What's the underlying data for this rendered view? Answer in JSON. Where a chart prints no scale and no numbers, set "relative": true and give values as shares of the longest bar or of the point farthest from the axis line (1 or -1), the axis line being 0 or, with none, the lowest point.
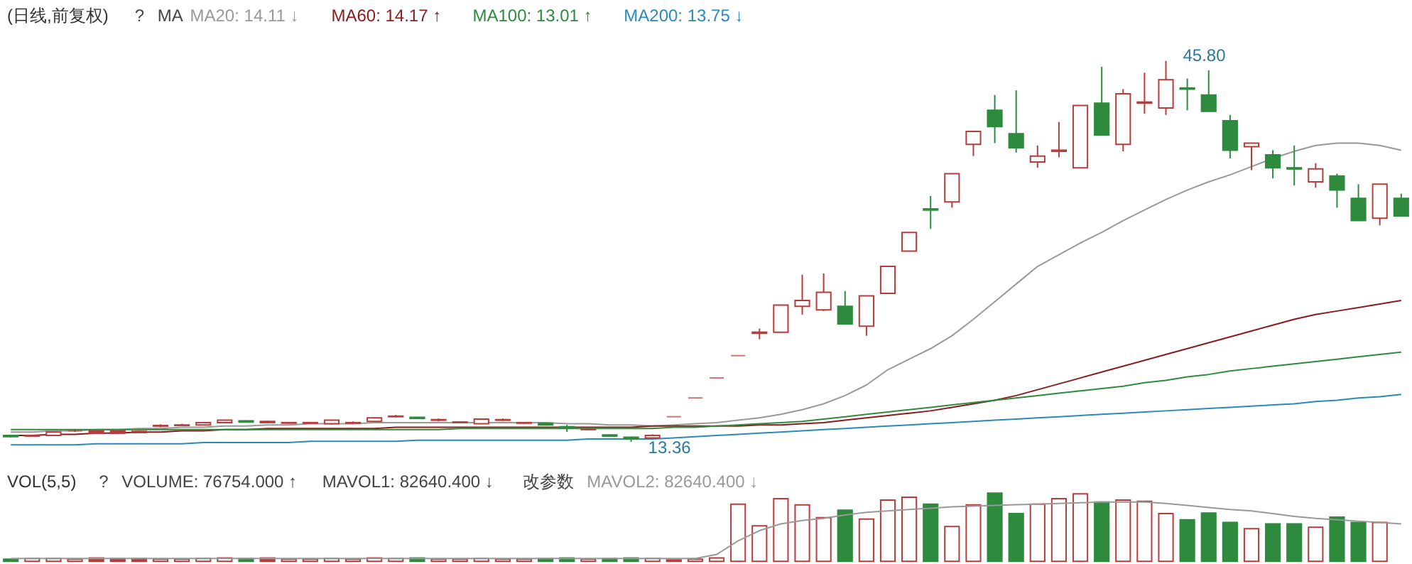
{
  "chart_data": [
    {
      "type": "candlestick",
      "title": "(日线,前复权)",
      "annotations": [
        "?",
        "MA",
        "45.80",
        "13.36"
      ],
      "legend": "top left",
      "tick_labels": false,
      "categories": [
        null,
        null,
        null,
        null,
        null,
        null,
        null,
        null,
        null,
        null,
        null,
        null,
        null,
        null,
        null,
        null,
        null,
        null,
        null,
        null,
        null,
        null,
        null,
        null,
        null,
        null,
        null,
        null,
        null,
        null,
        null,
        null,
        null,
        null,
        null,
        null,
        null,
        null,
        null,
        null,
        null,
        null,
        null,
        null,
        null,
        null,
        null,
        null,
        null,
        null,
        null,
        null,
        null,
        null,
        null,
        null,
        null,
        null,
        null,
        null,
        null,
        null,
        null,
        null,
        null,
        null
      ],
      "ohlc": [
        [
          13.9,
          13.95,
          13.75,
          13.8
        ],
        [
          13.85,
          13.95,
          13.8,
          13.9
        ],
        [
          13.9,
          14.25,
          13.85,
          14.2
        ],
        [
          14.3,
          14.4,
          14.2,
          14.3
        ],
        [
          14.3,
          14.3,
          14.05,
          14.1
        ],
        [
          14.3,
          14.35,
          14.05,
          14.1
        ],
        [
          14.25,
          14.3,
          14.1,
          14.15
        ],
        [
          14.7,
          14.85,
          14.6,
          14.75
        ],
        [
          14.75,
          14.9,
          14.7,
          14.8
        ],
        [
          14.8,
          15.05,
          14.75,
          15.0
        ],
        [
          15.0,
          15.25,
          14.95,
          15.2
        ],
        [
          15.15,
          15.2,
          15.0,
          15.05
        ],
        [
          15.1,
          15.15,
          14.95,
          15.0
        ],
        [
          14.95,
          15.05,
          14.9,
          15.0
        ],
        [
          14.95,
          15.05,
          14.9,
          15.0
        ],
        [
          14.9,
          15.25,
          14.85,
          15.2
        ],
        [
          14.95,
          15.1,
          14.9,
          15.0
        ],
        [
          15.1,
          15.45,
          15.05,
          15.4
        ],
        [
          15.5,
          15.65,
          15.45,
          15.55
        ],
        [
          15.45,
          15.5,
          15.3,
          15.35
        ],
        [
          15.2,
          15.35,
          15.1,
          15.25
        ],
        [
          15.0,
          15.1,
          14.95,
          15.05
        ],
        [
          14.9,
          15.35,
          14.85,
          15.3
        ],
        [
          15.2,
          15.35,
          15.15,
          15.25
        ],
        [
          14.95,
          15.05,
          14.9,
          15.0
        ],
        [
          14.95,
          15.0,
          14.75,
          14.8
        ],
        [
          14.65,
          14.8,
          14.2,
          14.55
        ],
        [
          14.4,
          14.5,
          14.35,
          14.45
        ],
        [
          13.95,
          14.0,
          13.8,
          13.85
        ],
        [
          13.75,
          13.8,
          13.36,
          13.6
        ],
        [
          13.7,
          14.0,
          13.65,
          13.9
        ],
        [
          15.5,
          15.5,
          15.5,
          15.5
        ],
        [
          17.1,
          17.1,
          17.1,
          17.1
        ],
        [
          18.8,
          18.8,
          18.8,
          18.8
        ],
        [
          20.7,
          20.7,
          20.7,
          20.7
        ],
        [
          22.6,
          23.0,
          22.1,
          22.7
        ],
        [
          22.7,
          25.0,
          22.7,
          25.0
        ],
        [
          24.9,
          27.6,
          24.2,
          25.4
        ],
        [
          24.6,
          27.7,
          24.5,
          26.1
        ],
        [
          24.9,
          26.2,
          23.4,
          23.4
        ],
        [
          23.2,
          25.8,
          22.4,
          25.8
        ],
        [
          26.0,
          28.3,
          26.0,
          28.3
        ],
        [
          29.6,
          31.2,
          29.6,
          31.2
        ],
        [
          33.2,
          34.3,
          31.5,
          33.1
        ],
        [
          33.8,
          36.2,
          33.3,
          36.2
        ],
        [
          38.7,
          39.8,
          37.7,
          39.8
        ],
        [
          41.6,
          42.9,
          38.8,
          40.2
        ],
        [
          39.6,
          43.3,
          38.0,
          38.4
        ],
        [
          37.2,
          38.6,
          36.7,
          37.7
        ],
        [
          38.1,
          40.6,
          37.6,
          38.2
        ],
        [
          36.7,
          42.0,
          36.7,
          42.0
        ],
        [
          42.2,
          45.3,
          39.5,
          39.5
        ],
        [
          38.7,
          43.4,
          38.1,
          43.0
        ],
        [
          42.2,
          44.8,
          41.3,
          42.3
        ],
        [
          41.8,
          45.8,
          41.2,
          44.2
        ],
        [
          43.5,
          44.3,
          41.6,
          43.4
        ],
        [
          42.9,
          45.0,
          41.5,
          41.5
        ],
        [
          40.7,
          41.2,
          37.5,
          38.2
        ],
        [
          38.5,
          38.8,
          36.5,
          38.8
        ],
        [
          37.8,
          38.2,
          35.8,
          36.7
        ],
        [
          36.7,
          38.6,
          35.2,
          36.6
        ],
        [
          35.5,
          37.1,
          35.0,
          36.6
        ],
        [
          36.0,
          36.2,
          33.3,
          34.8
        ],
        [
          34.1,
          35.3,
          32.2,
          32.2
        ],
        [
          32.4,
          35.3,
          31.8,
          35.3
        ],
        [
          34.1,
          34.5,
          32.6,
          32.6
        ]
      ],
      "colors": [
        "#2e8b3e",
        "#b83c3c",
        "#b83c3c",
        "#b83c3c",
        "#b83c3c",
        "#b83c3c",
        "#b83c3c",
        "#b83c3c",
        "#b83c3c",
        "#b83c3c",
        "#b83c3c",
        "#2e8b3e",
        "#b83c3c",
        "#b83c3c",
        "#b83c3c",
        "#b83c3c",
        "#b83c3c",
        "#b83c3c",
        "#b83c3c",
        "#2e8b3e",
        "#b83c3c",
        "#b83c3c",
        "#b83c3c",
        "#b83c3c",
        "#b83c3c",
        "#2e8b3e",
        "#2e8b3e",
        "#b83c3c",
        "#2e8b3e",
        "#2e8b3e",
        "#b83c3c",
        "#b83c3c",
        "#b83c3c",
        "#b83c3c",
        "#b83c3c",
        "#b83c3c",
        "#b83c3c",
        "#b83c3c",
        "#b83c3c",
        "#2e8b3e",
        "#b83c3c",
        "#b83c3c",
        "#b83c3c",
        "#2e8b3e",
        "#b83c3c",
        "#b83c3c",
        "#2e8b3e",
        "#2e8b3e",
        "#b83c3c",
        "#b83c3c",
        "#b83c3c",
        "#2e8b3e",
        "#b83c3c",
        "#b83c3c",
        "#b83c3c",
        "#2e8b3e",
        "#2e8b3e",
        "#2e8b3e",
        "#b83c3c",
        "#2e8b3e",
        "#2e8b3e",
        "#b83c3c",
        "#2e8b3e",
        "#2e8b3e",
        "#b83c3c",
        "#2e8b3e"
      ],
      "series": [
        {
          "name": "MA20: 14.11 ↓",
          "type": "line",
          "color": "#999999",
          "values": [
            14.2,
            14.2,
            14.3,
            14.3,
            14.4,
            14.4,
            14.5,
            14.5,
            14.6,
            14.6,
            14.7,
            14.7,
            14.8,
            14.8,
            14.9,
            14.9,
            14.9,
            15.0,
            15.0,
            15.0,
            15.0,
            15.0,
            15.0,
            15.0,
            15.0,
            15.0,
            14.9,
            14.9,
            14.8,
            14.8,
            14.7,
            14.8,
            14.9,
            15.0,
            15.2,
            15.4,
            15.7,
            16.1,
            16.6,
            17.3,
            18.2,
            19.5,
            20.4,
            21.3,
            22.4,
            23.8,
            25.3,
            26.8,
            28.3,
            29.3,
            30.3,
            31.2,
            32.2,
            33.1,
            34.0,
            34.8,
            35.5,
            36.1,
            36.8,
            37.5,
            38.1,
            38.6,
            38.8,
            38.8,
            38.6,
            38.2
          ]
        },
        {
          "name": "MA60: 14.17 ↑",
          "type": "line",
          "color": "#8b1a1a",
          "values": [
            13.9,
            13.9,
            14.0,
            14.0,
            14.1,
            14.1,
            14.2,
            14.2,
            14.3,
            14.3,
            14.4,
            14.4,
            14.5,
            14.5,
            14.5,
            14.5,
            14.5,
            14.5,
            14.6,
            14.6,
            14.6,
            14.6,
            14.6,
            14.6,
            14.6,
            14.6,
            14.6,
            14.6,
            14.6,
            14.6,
            14.7,
            14.7,
            14.7,
            14.7,
            14.7,
            14.8,
            14.8,
            14.9,
            15.0,
            15.2,
            15.4,
            15.6,
            15.8,
            16.0,
            16.3,
            16.6,
            16.9,
            17.3,
            17.8,
            18.3,
            18.8,
            19.3,
            19.8,
            20.3,
            20.8,
            21.3,
            21.8,
            22.3,
            22.8,
            23.3,
            23.8,
            24.2,
            24.5,
            24.8,
            25.1,
            25.4
          ]
        },
        {
          "name": "MA100: 13.01 ↑",
          "type": "line",
          "color": "#2e8b3e",
          "values": [
            14.4,
            14.4,
            14.4,
            14.4,
            14.4,
            14.4,
            14.4,
            14.4,
            14.4,
            14.4,
            14.4,
            14.4,
            14.4,
            14.4,
            14.4,
            14.4,
            14.4,
            14.4,
            14.4,
            14.4,
            14.4,
            14.5,
            14.5,
            14.5,
            14.5,
            14.5,
            14.5,
            14.5,
            14.5,
            14.5,
            14.5,
            14.6,
            14.6,
            14.7,
            14.8,
            14.9,
            15.0,
            15.1,
            15.3,
            15.5,
            15.7,
            15.9,
            16.1,
            16.3,
            16.5,
            16.7,
            16.9,
            17.1,
            17.3,
            17.5,
            17.7,
            17.9,
            18.1,
            18.4,
            18.6,
            18.9,
            19.1,
            19.4,
            19.6,
            19.8,
            20.0,
            20.2,
            20.4,
            20.6,
            20.8,
            21.0
          ]
        },
        {
          "name": "MA200: 13.75 ↓",
          "type": "line",
          "color": "#2a8ab8",
          "values": [
            13.1,
            13.1,
            13.1,
            13.1,
            13.2,
            13.2,
            13.2,
            13.2,
            13.2,
            13.3,
            13.3,
            13.3,
            13.3,
            13.3,
            13.4,
            13.4,
            13.4,
            13.4,
            13.4,
            13.5,
            13.5,
            13.5,
            13.5,
            13.5,
            13.5,
            13.5,
            13.5,
            13.6,
            13.6,
            13.6,
            13.6,
            13.7,
            13.8,
            13.9,
            14.0,
            14.1,
            14.2,
            14.3,
            14.4,
            14.5,
            14.6,
            14.7,
            14.8,
            14.9,
            15.0,
            15.1,
            15.2,
            15.3,
            15.4,
            15.5,
            15.6,
            15.7,
            15.8,
            15.9,
            16.0,
            16.1,
            16.2,
            16.3,
            16.4,
            16.5,
            16.6,
            16.8,
            16.9,
            17.1,
            17.2,
            17.4
          ]
        }
      ]
    },
    {
      "type": "bar",
      "title": "VOL(5,5)",
      "annotations": [
        "?",
        "VOLUME: 76754.000 ↑",
        "MAVOL1: 82640.400 ↓",
        "改参数"
      ],
      "relative": true,
      "legend": "top left",
      "tick_labels": false,
      "categories": [
        null,
        null,
        null,
        null,
        null,
        null,
        null,
        null,
        null,
        null,
        null,
        null,
        null,
        null,
        null,
        null,
        null,
        null,
        null,
        null,
        null,
        null,
        null,
        null,
        null,
        null,
        null,
        null,
        null,
        null,
        null,
        null,
        null,
        null,
        null,
        null,
        null,
        null,
        null,
        null,
        null,
        null,
        null,
        null,
        null,
        null,
        null,
        null,
        null,
        null,
        null,
        null,
        null,
        null,
        null,
        null,
        null,
        null,
        null,
        null,
        null,
        null,
        null,
        null,
        null,
        null
      ],
      "series": [
        {
          "type": "bar",
          "colors": [
            "#2e8b3e",
            "#b83c3c",
            "#b83c3c",
            "#b83c3c",
            "#b83c3c",
            "#b83c3c",
            "#b83c3c",
            "#b83c3c",
            "#b83c3c",
            "#b83c3c",
            "#b83c3c",
            "#2e8b3e",
            "#b83c3c",
            "#b83c3c",
            "#b83c3c",
            "#b83c3c",
            "#b83c3c",
            "#b83c3c",
            "#b83c3c",
            "#2e8b3e",
            "#b83c3c",
            "#b83c3c",
            "#b83c3c",
            "#b83c3c",
            "#b83c3c",
            "#2e8b3e",
            "#2e8b3e",
            "#b83c3c",
            "#2e8b3e",
            "#2e8b3e",
            "#b83c3c",
            "#b83c3c",
            "#b83c3c",
            "#b83c3c",
            "#b83c3c",
            "#b83c3c",
            "#b83c3c",
            "#b83c3c",
            "#b83c3c",
            "#2e8b3e",
            "#b83c3c",
            "#b83c3c",
            "#b83c3c",
            "#2e8b3e",
            "#b83c3c",
            "#b83c3c",
            "#2e8b3e",
            "#2e8b3e",
            "#b83c3c",
            "#b83c3c",
            "#b83c3c",
            "#2e8b3e",
            "#b83c3c",
            "#b83c3c",
            "#b83c3c",
            "#2e8b3e",
            "#2e8b3e",
            "#2e8b3e",
            "#b83c3c",
            "#2e8b3e",
            "#2e8b3e",
            "#b83c3c",
            "#2e8b3e",
            "#2e8b3e",
            "#b83c3c",
            "#2e8b3e"
          ],
          "values": [
            0.03,
            0.04,
            0.04,
            0.03,
            0.05,
            0.04,
            0.04,
            0.03,
            0.03,
            0.04,
            0.05,
            0.04,
            0.05,
            0.03,
            0.03,
            0.04,
            0.03,
            0.05,
            0.04,
            0.05,
            0.03,
            0.03,
            0.04,
            0.03,
            0.03,
            0.04,
            0.05,
            0.03,
            0.04,
            0.05,
            0.04,
            0.02,
            0.03,
            0.05,
            0.84,
            0.52,
            0.92,
            0.83,
            0.64,
            0.75,
            0.62,
            0.9,
            0.94,
            0.84,
            0.51,
            0.83,
            1.0,
            0.7,
            0.84,
            0.92,
            0.99,
            0.87,
            0.9,
            0.88,
            0.7,
            0.61,
            0.71,
            0.57,
            0.48,
            0.55,
            0.55,
            0.5,
            0.65,
            0.57,
            0.57,
            null
          ]
        },
        {
          "name": "MAVOL2: 82640.400 ↓",
          "type": "line",
          "color": "#999999",
          "values": [
            0.04,
            0.04,
            0.04,
            0.04,
            0.04,
            0.04,
            0.04,
            0.04,
            0.04,
            0.04,
            0.04,
            0.04,
            0.04,
            0.04,
            0.04,
            0.04,
            0.04,
            0.04,
            0.04,
            0.04,
            0.04,
            0.04,
            0.04,
            0.04,
            0.04,
            0.04,
            0.04,
            0.04,
            0.04,
            0.04,
            0.04,
            0.04,
            0.04,
            0.1,
            0.3,
            0.45,
            0.55,
            0.6,
            0.63,
            0.68,
            0.72,
            0.74,
            0.76,
            0.78,
            0.8,
            0.81,
            0.82,
            0.83,
            0.84,
            0.85,
            0.86,
            0.87,
            0.87,
            0.87,
            0.85,
            0.82,
            0.79,
            0.76,
            0.74,
            0.7,
            0.66,
            0.63,
            0.61,
            0.59,
            0.57,
            0.55
          ]
        }
      ]
    }
  ]
}
